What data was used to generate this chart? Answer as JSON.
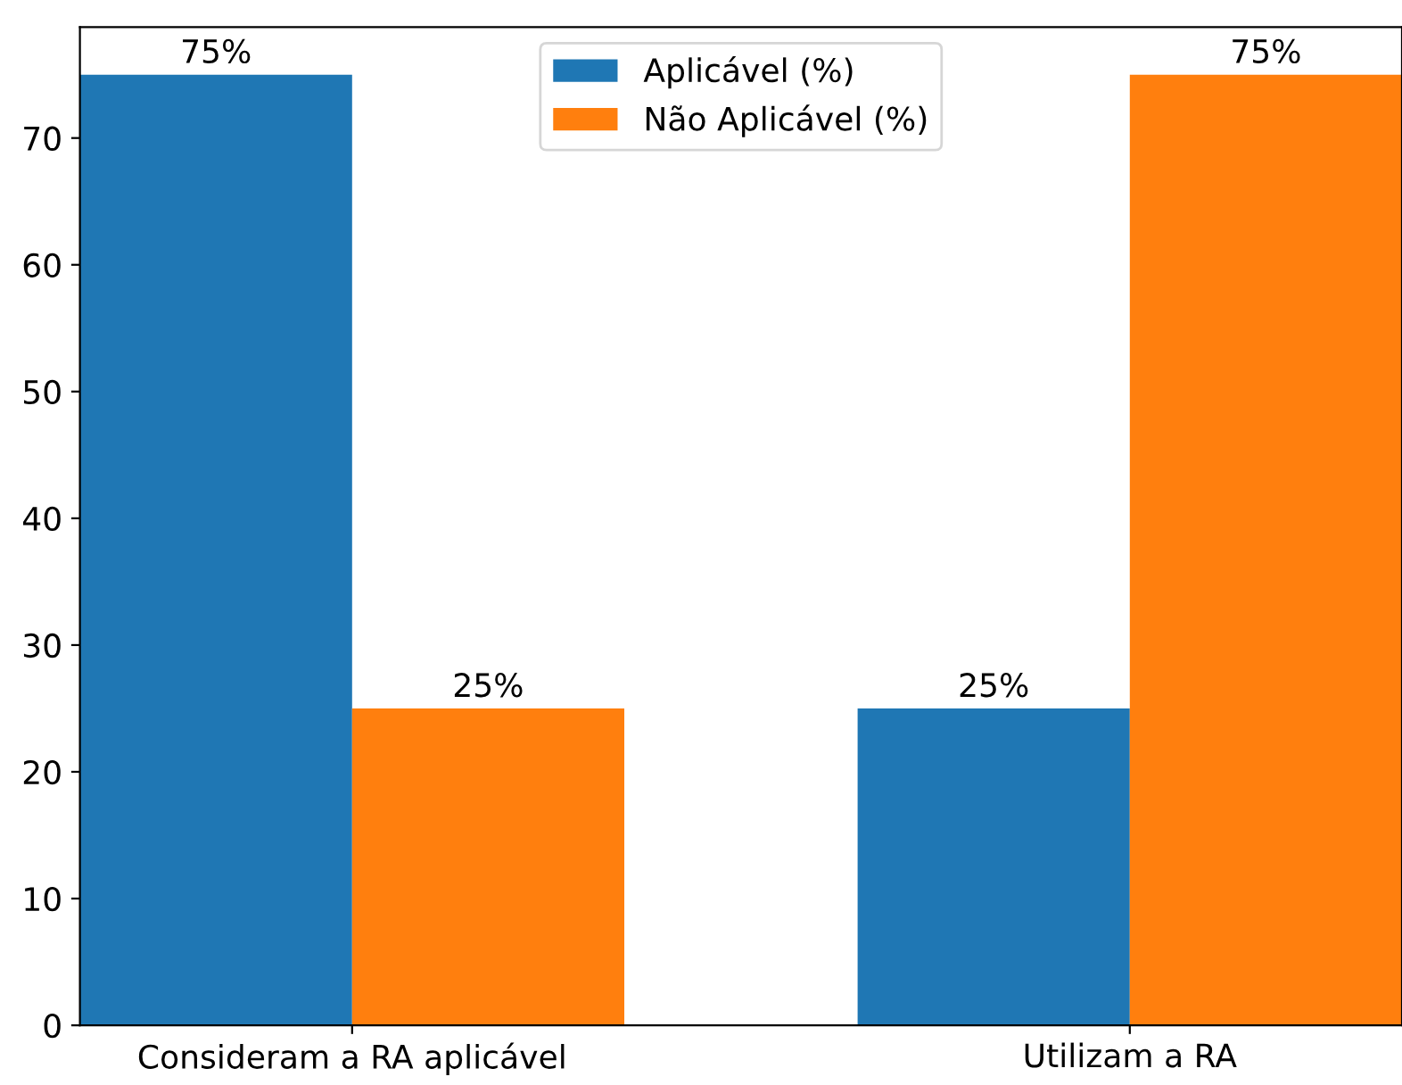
{
  "chart_data": {
    "type": "bar",
    "categories": [
      "Consideram a RA aplicável",
      "Utilizam a RA"
    ],
    "series": [
      {
        "name": "Aplicável (%)",
        "color": "#1f77b4",
        "values": [
          75,
          25
        ],
        "value_labels": [
          "75%",
          "25%"
        ]
      },
      {
        "name": "Não Aplicável (%)",
        "color": "#ff7f0e",
        "values": [
          25,
          75
        ],
        "value_labels": [
          "25%",
          "75%"
        ]
      }
    ],
    "ylim": [
      0,
      78.75
    ],
    "yticks": [
      0,
      10,
      20,
      30,
      40,
      50,
      60,
      70
    ],
    "grid": false,
    "legend": "top"
  }
}
